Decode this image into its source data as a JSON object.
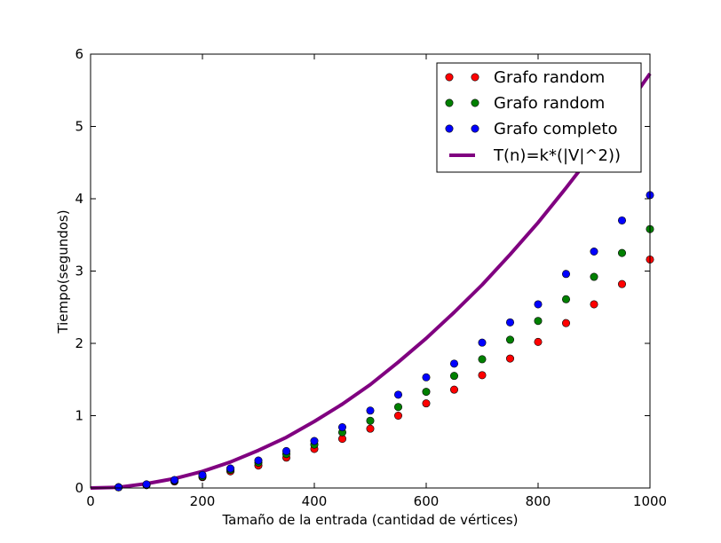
{
  "chart_data": {
    "type": "scatter",
    "xlabel": "Tamaño de la entrada (cantidad de vértices)",
    "ylabel": "Tiempo(segundos)",
    "xlim": [
      0,
      1000
    ],
    "ylim": [
      0,
      6
    ],
    "x_ticks": [
      "0",
      "200",
      "400",
      "600",
      "800",
      "1000"
    ],
    "y_ticks": [
      "0",
      "1",
      "2",
      "3",
      "4",
      "5",
      "6"
    ],
    "grid": false,
    "legend_position": "top-right",
    "x": [
      50,
      100,
      150,
      200,
      250,
      300,
      350,
      400,
      450,
      500,
      550,
      600,
      650,
      700,
      750,
      800,
      850,
      900,
      950,
      1000
    ],
    "series": [
      {
        "name": "Grafo random",
        "kind": "points",
        "color": "#ff0000",
        "values": [
          0.01,
          0.04,
          0.09,
          0.15,
          0.23,
          0.31,
          0.42,
          0.54,
          0.68,
          0.82,
          1.0,
          1.17,
          1.36,
          1.56,
          1.79,
          2.02,
          2.28,
          2.54,
          2.82,
          3.16
        ]
      },
      {
        "name": "Grafo random",
        "kind": "points",
        "color": "#008000",
        "values": [
          0.01,
          0.04,
          0.1,
          0.16,
          0.25,
          0.35,
          0.47,
          0.6,
          0.77,
          0.93,
          1.12,
          1.33,
          1.55,
          1.78,
          2.05,
          2.31,
          2.61,
          2.92,
          3.25,
          3.58
        ]
      },
      {
        "name": "Grafo completo",
        "kind": "points",
        "color": "#0000ff",
        "values": [
          0.01,
          0.05,
          0.11,
          0.18,
          0.27,
          0.38,
          0.51,
          0.65,
          0.84,
          1.07,
          1.29,
          1.53,
          1.72,
          2.01,
          2.29,
          2.54,
          2.96,
          3.27,
          3.7,
          4.05
        ]
      },
      {
        "name": "T(n)=k*(|V|^2))",
        "kind": "line",
        "color": "#800080",
        "values": [
          0.01,
          0.06,
          0.13,
          0.23,
          0.36,
          0.52,
          0.7,
          0.92,
          1.16,
          1.43,
          1.74,
          2.07,
          2.43,
          2.81,
          3.23,
          3.67,
          4.15,
          4.65,
          5.18,
          5.73
        ]
      }
    ]
  }
}
